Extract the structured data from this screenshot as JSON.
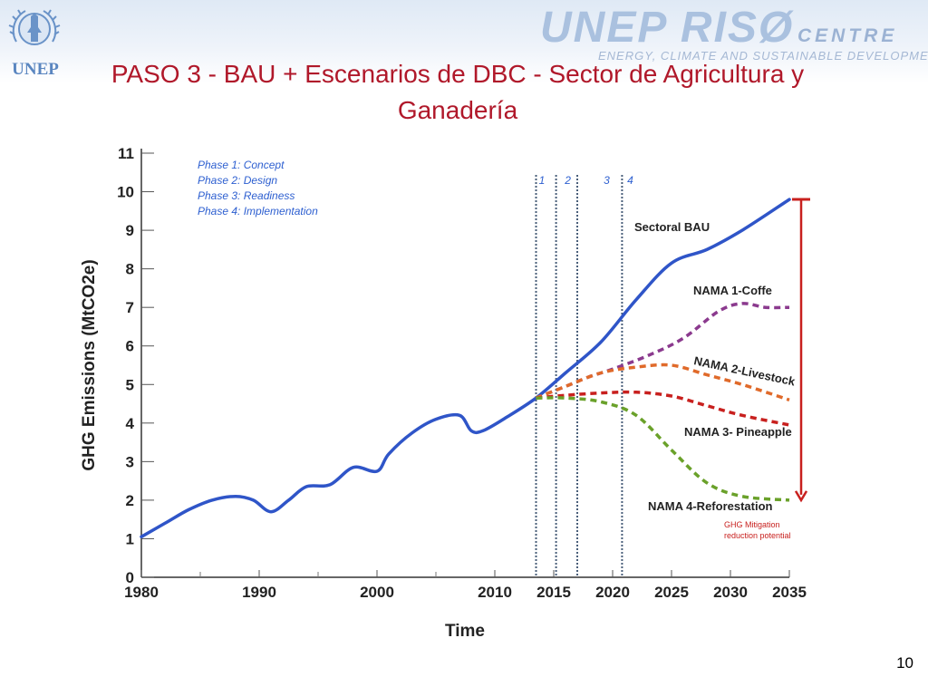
{
  "slide": {
    "title": "PASO 3 - BAU + Escenarios de DBC - Sector de Agricultura y Ganadería",
    "page_number": "10"
  },
  "header": {
    "unep_logo_text": "UNEP",
    "riso_main": "UNEP RISØ",
    "riso_centre": "CENTRE",
    "riso_tagline": "ENERGY, CLIMATE AND SUSTAINABLE DEVELOPMENT"
  },
  "chart_data": {
    "type": "line",
    "xlabel": "Time",
    "ylabel": "GHG Emissions (MtCO2e)",
    "xlim": [
      1980,
      2035
    ],
    "ylim": [
      0,
      11
    ],
    "x_ticks": [
      1980,
      1990,
      2000,
      2010,
      2015,
      2020,
      2025,
      2030,
      2035
    ],
    "y_ticks": [
      0,
      1,
      2,
      3,
      4,
      5,
      6,
      7,
      8,
      9,
      10,
      11
    ],
    "phase_legend": [
      "Phase 1: Concept",
      "Phase 2: Design",
      "Phase 3: Readiness",
      "Phase 4: Implementation"
    ],
    "phase_markers": [
      {
        "label": "1",
        "x": 2014,
        "line_x": 2013.5
      },
      {
        "label": "2",
        "x": 2016.2,
        "line_x": 2015.2
      },
      {
        "label": "3",
        "x": 2019.5,
        "line_x": 2017
      },
      {
        "label": "4",
        "x": 2021.5,
        "line_x": 2020.8
      }
    ],
    "series": [
      {
        "name": "Sectoral BAU",
        "color": "#2f55c8",
        "style": "solid",
        "x": [
          1980,
          1982,
          1984,
          1986,
          1988,
          1989.5,
          1991,
          1992.5,
          1994,
          1996,
          1998,
          2000,
          2001,
          2003,
          2005,
          2007,
          2008,
          2009,
          2011,
          2013.5,
          2016,
          2019,
          2022,
          2025,
          2028,
          2031,
          2035
        ],
        "y": [
          1.05,
          1.4,
          1.75,
          2.0,
          2.1,
          2.0,
          1.7,
          2.0,
          2.35,
          2.4,
          2.85,
          2.75,
          3.2,
          3.75,
          4.1,
          4.2,
          3.8,
          3.8,
          4.15,
          4.65,
          5.3,
          6.1,
          7.2,
          8.15,
          8.5,
          9.0,
          9.8
        ]
      },
      {
        "name": "NAMA 1-Coffe",
        "color": "#8b3a8e",
        "style": "dashed",
        "x": [
          2013.5,
          2016,
          2018,
          2020,
          2023,
          2026,
          2029,
          2031,
          2033,
          2035
        ],
        "y": [
          4.65,
          4.95,
          5.2,
          5.4,
          5.75,
          6.2,
          6.9,
          7.1,
          7.0,
          7.0
        ]
      },
      {
        "name": "NAMA 2-Livestock",
        "color": "#e06a2a",
        "style": "dashed",
        "x": [
          2013.5,
          2016,
          2019,
          2022,
          2025,
          2028,
          2031,
          2035
        ],
        "y": [
          4.65,
          4.95,
          5.3,
          5.45,
          5.5,
          5.25,
          5.0,
          4.6
        ]
      },
      {
        "name": "NAMA 3- Pineapple",
        "color": "#c8201e",
        "style": "dashed",
        "x": [
          2013.5,
          2016,
          2019,
          2022,
          2025,
          2028,
          2031,
          2035
        ],
        "y": [
          4.65,
          4.72,
          4.78,
          4.8,
          4.7,
          4.45,
          4.2,
          3.95
        ]
      },
      {
        "name": "NAMA 4-Reforestation",
        "color": "#6aa12a",
        "style": "dashed",
        "x": [
          2013.5,
          2016,
          2019,
          2022,
          2025,
          2028,
          2031,
          2035
        ],
        "y": [
          4.65,
          4.65,
          4.55,
          4.2,
          3.3,
          2.45,
          2.1,
          2.0
        ]
      }
    ],
    "mitigation_arrow": {
      "label_line1": "GHG Mitigation",
      "label_line2": "reduction potential",
      "color": "#c8201e",
      "from": 9.8,
      "to": 2.0
    }
  }
}
